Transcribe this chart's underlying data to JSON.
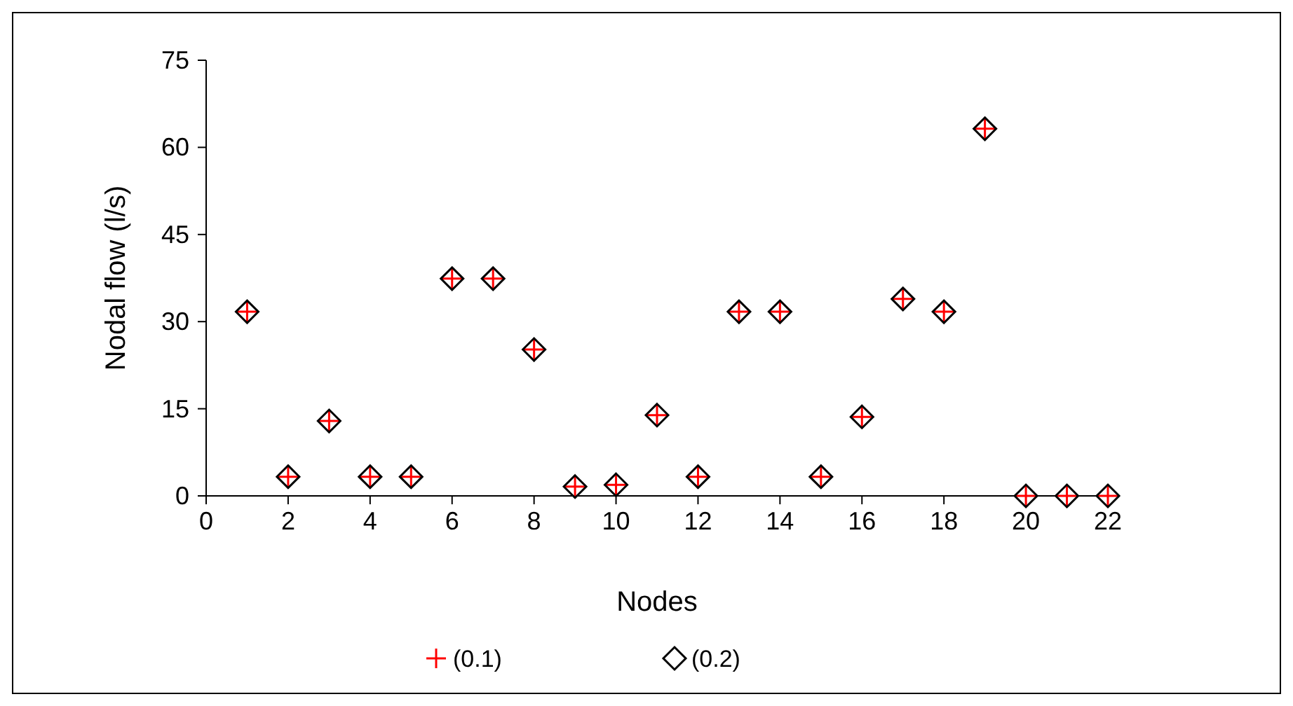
{
  "chart_data": {
    "type": "scatter",
    "xlabel": "Nodes",
    "ylabel": "Nodal flow (l/s)",
    "x": [
      1,
      2,
      3,
      4,
      5,
      6,
      7,
      8,
      9,
      10,
      11,
      12,
      13,
      14,
      15,
      16,
      17,
      18,
      19,
      20,
      21,
      22
    ],
    "xlim": [
      0,
      22
    ],
    "xticks": [
      0,
      2,
      4,
      6,
      8,
      10,
      12,
      14,
      16,
      18,
      20,
      22
    ],
    "ylim": [
      0,
      75
    ],
    "yticks": [
      0,
      15,
      30,
      45,
      60,
      75
    ],
    "grid": false,
    "legend": "bottom",
    "series": [
      {
        "name": "(0.1)",
        "color": "#ff0000",
        "marker": "cross",
        "values": [
          31.7,
          3.3,
          12.9,
          3.3,
          3.3,
          37.4,
          37.4,
          25.2,
          1.6,
          1.9,
          13.9,
          3.3,
          31.7,
          31.7,
          3.3,
          13.6,
          33.9,
          31.7,
          63.2,
          0,
          0,
          0
        ]
      },
      {
        "name": "(0.2)",
        "color": "#000000",
        "marker": "diamond",
        "values": [
          31.7,
          3.3,
          12.9,
          3.3,
          3.3,
          37.4,
          37.4,
          25.2,
          1.6,
          1.9,
          13.9,
          3.3,
          31.7,
          31.7,
          3.3,
          13.6,
          33.9,
          31.7,
          63.2,
          0,
          0,
          0
        ]
      }
    ]
  }
}
